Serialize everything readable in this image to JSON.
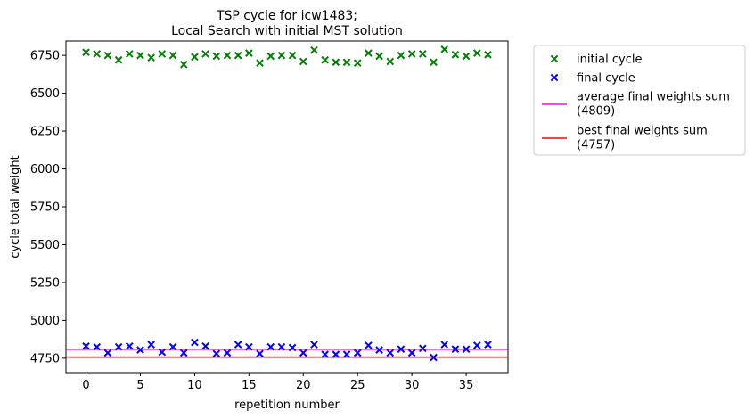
{
  "chart_data": {
    "type": "scatter",
    "title_lines": [
      "TSP cycle for icw1483;",
      "Local Search with initial MST solution"
    ],
    "xlabel": "repetition number",
    "ylabel": "cycle total weight",
    "xlim": [
      -1.85,
      38.85
    ],
    "ylim": [
      4655,
      6845
    ],
    "xticks": [
      0,
      5,
      10,
      15,
      20,
      25,
      30,
      35
    ],
    "yticks": [
      4750,
      5000,
      5250,
      5500,
      5750,
      6000,
      6250,
      6500,
      6750
    ],
    "grid": false,
    "legend_position": "outside-top-right",
    "series": [
      {
        "name": "initial cycle",
        "marker": "x",
        "color": "#008000",
        "x": [
          0,
          1,
          2,
          3,
          4,
          5,
          6,
          7,
          8,
          9,
          10,
          11,
          12,
          13,
          14,
          15,
          16,
          17,
          18,
          19,
          20,
          21,
          22,
          23,
          24,
          25,
          26,
          27,
          28,
          29,
          30,
          31,
          32,
          33,
          34,
          35,
          36,
          37
        ],
        "y": [
          6770,
          6760,
          6750,
          6720,
          6760,
          6750,
          6735,
          6760,
          6750,
          6690,
          6740,
          6760,
          6745,
          6750,
          6750,
          6765,
          6700,
          6745,
          6750,
          6750,
          6710,
          6785,
          6720,
          6705,
          6705,
          6700,
          6765,
          6745,
          6710,
          6750,
          6760,
          6760,
          6705,
          6790,
          6755,
          6745,
          6765,
          6755
        ]
      },
      {
        "name": "final cycle",
        "marker": "x",
        "color": "#0000ff",
        "x": [
          0,
          1,
          2,
          3,
          4,
          5,
          6,
          7,
          8,
          9,
          10,
          11,
          12,
          13,
          14,
          15,
          16,
          17,
          18,
          19,
          20,
          21,
          22,
          23,
          24,
          25,
          26,
          27,
          28,
          29,
          30,
          31,
          32,
          33,
          34,
          35,
          36,
          37
        ],
        "y": [
          4830,
          4825,
          4785,
          4825,
          4830,
          4805,
          4840,
          4790,
          4825,
          4785,
          4855,
          4830,
          4780,
          4785,
          4840,
          4825,
          4780,
          4825,
          4825,
          4820,
          4785,
          4840,
          4775,
          4775,
          4775,
          4785,
          4835,
          4805,
          4785,
          4810,
          4785,
          4815,
          4755,
          4840,
          4810,
          4810,
          4835,
          4840
        ]
      }
    ],
    "hlines": [
      {
        "name": "average final weights sum (4809)",
        "legend_lines": [
          "average final weights sum",
          "(4809)"
        ],
        "y": 4809,
        "color": "#ff00ff"
      },
      {
        "name": "best final weights sum (4757)",
        "legend_lines": [
          "best final weights sum",
          "(4757)"
        ],
        "y": 4757,
        "color": "#ff0000"
      }
    ]
  }
}
